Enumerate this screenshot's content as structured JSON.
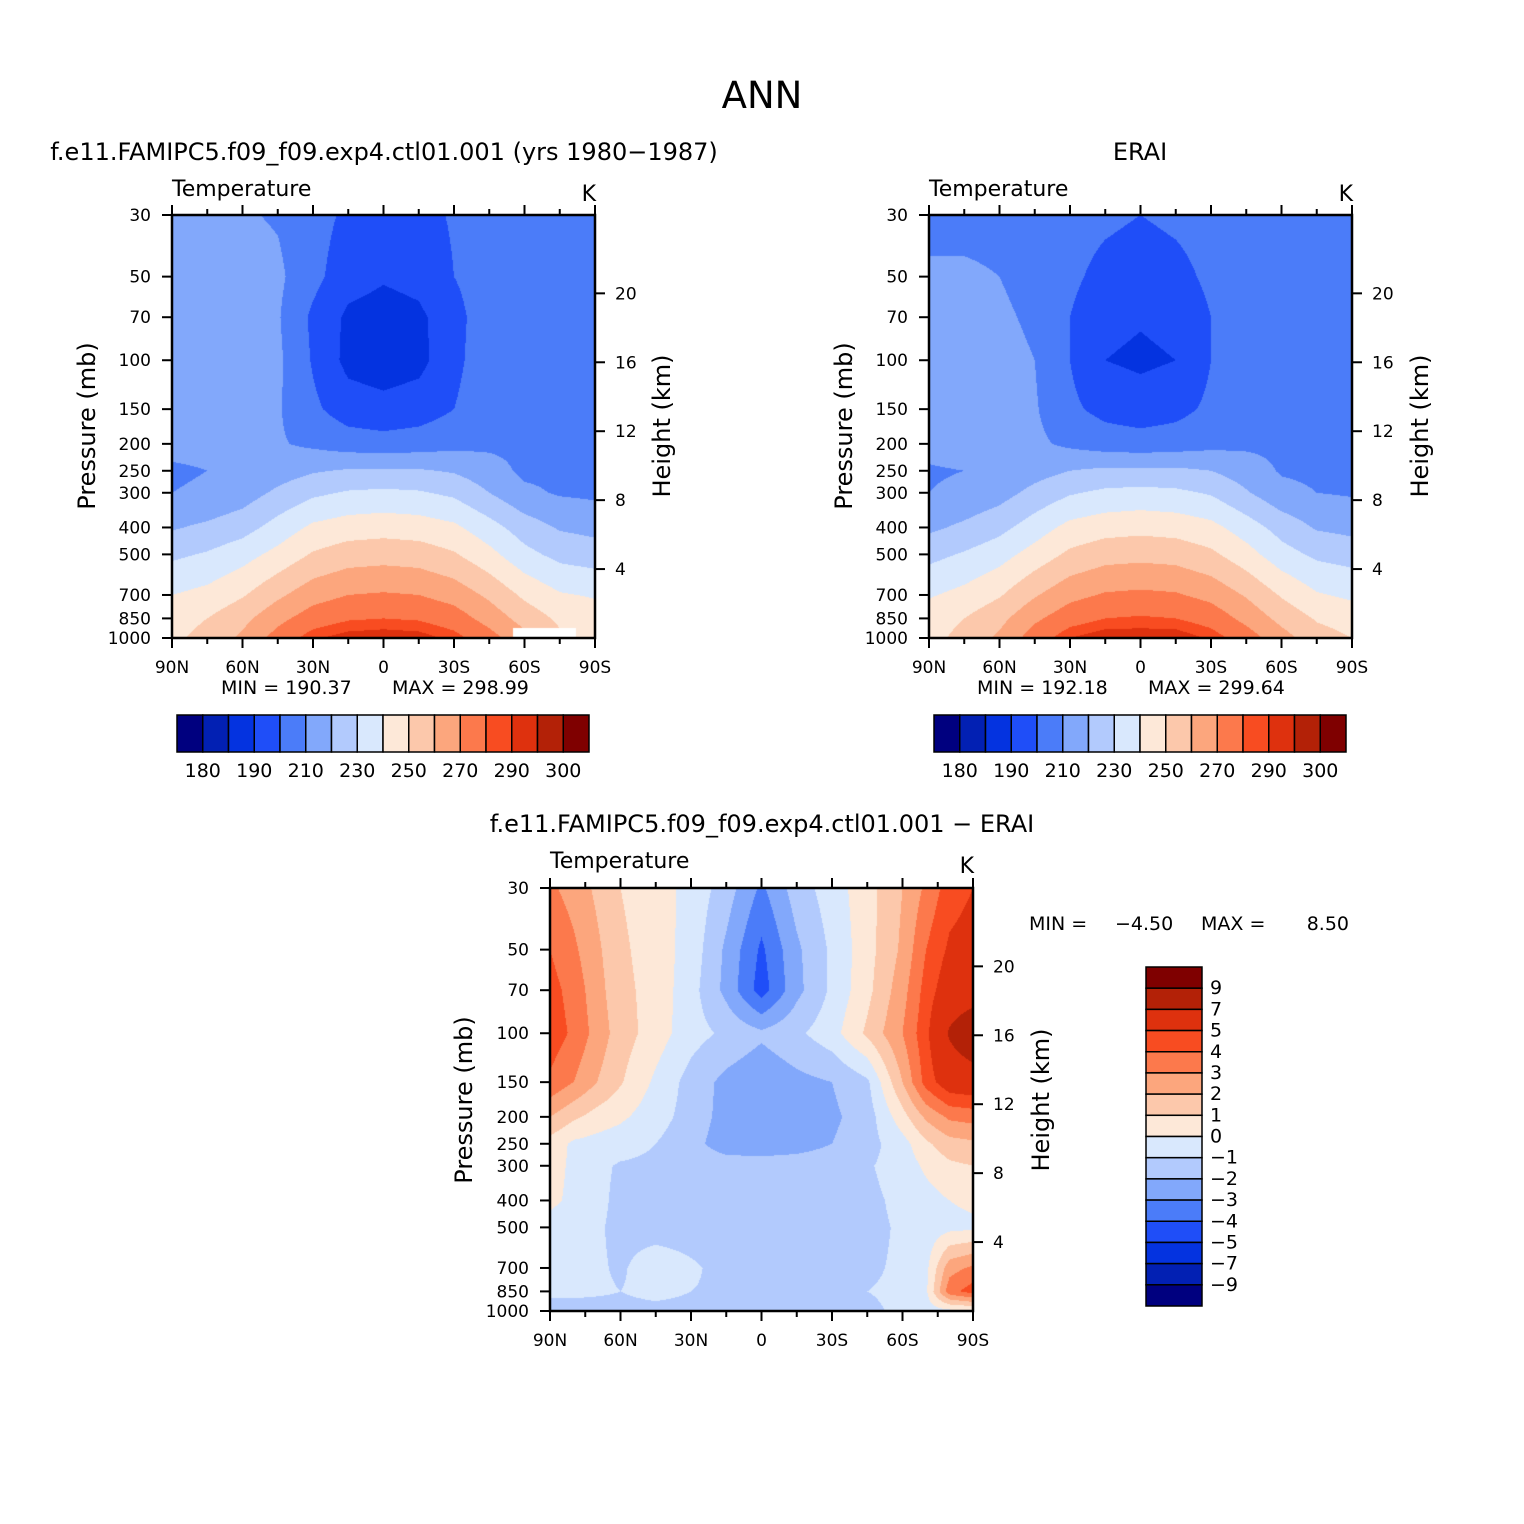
{
  "page": {
    "title": "ANN"
  },
  "colors": {
    "levels": [
      "#00007f",
      "#0220b3",
      "#0433e0",
      "#1f4ef8",
      "#4b7cf9",
      "#82a8fb",
      "#b2cafd",
      "#d9e8fd",
      "#fde8d8",
      "#fcc8ab",
      "#fca67d",
      "#fc794c",
      "#f84c21",
      "#de310e",
      "#b32107",
      "#7f0000"
    ]
  },
  "chart_data": [
    {
      "type": "heatmap",
      "panel": "model",
      "title": "f.e11.FAMIPC5.f09_f09.exp4.ctl01.001 (yrs 1980−1987)",
      "left_string": "Temperature",
      "right_string": "K",
      "ylabel": "Pressure (mb)",
      "ylabel_right": "Height (km)",
      "xlim": [
        90,
        -90
      ],
      "x_ticks": [
        90,
        60,
        30,
        0,
        -30,
        -60,
        -90
      ],
      "x_tick_labels": [
        "90N",
        "60N",
        "30N",
        "0",
        "30S",
        "60S",
        "90S"
      ],
      "ylim": [
        30,
        1000
      ],
      "y_scale": "log",
      "y_ticks": [
        30,
        50,
        70,
        100,
        150,
        200,
        250,
        300,
        400,
        500,
        700,
        850,
        1000
      ],
      "y_tick_labels": [
        "30",
        "50",
        "70",
        "100",
        "150",
        "200",
        "250",
        "300",
        "400",
        "500",
        "700",
        "850",
        "1000"
      ],
      "y_ticks_right": [
        20,
        16,
        12,
        8,
        4
      ],
      "y_tick_labels_right": [
        "20",
        "16",
        "12",
        "8",
        "4"
      ],
      "min_label": "MIN = 190.37",
      "max_label": "MAX = 298.99",
      "min": 190.37,
      "max": 298.99,
      "levels": [
        180,
        190,
        200,
        210,
        220,
        230,
        240,
        250,
        260,
        270,
        280,
        290,
        295,
        300,
        305
      ],
      "colorbar_labels": [
        "180",
        "190",
        "210",
        "230",
        "250",
        "270",
        "290",
        "300"
      ],
      "colorbar_orientation": "horizontal",
      "field": {
        "lat": [
          90,
          75,
          60,
          45,
          30,
          15,
          0,
          -15,
          -30,
          -45,
          -60,
          -75,
          -90
        ],
        "plev": [
          30,
          50,
          70,
          100,
          150,
          200,
          250,
          300,
          400,
          500,
          700,
          850,
          1000
        ],
        "values": [
          [
            222,
            222,
            221,
            219,
            214,
            208,
            205,
            207,
            211,
            215,
            217,
            217,
            217
          ],
          [
            226,
            226,
            225,
            222,
            213,
            204,
            201,
            203,
            210,
            216,
            218,
            218,
            218
          ],
          [
            226,
            226,
            225,
            221,
            208,
            198,
            196,
            198,
            206,
            217,
            218,
            218,
            218
          ],
          [
            226,
            226,
            226,
            222,
            209,
            197,
            195,
            197,
            207,
            217,
            218,
            218,
            218
          ],
          [
            225,
            225,
            224,
            221,
            212,
            205,
            203,
            205,
            210,
            217,
            218,
            218,
            218
          ],
          [
            222,
            222,
            221,
            221,
            218,
            215,
            214,
            215,
            217,
            218,
            218,
            217,
            217
          ],
          [
            219,
            220,
            221,
            225,
            229,
            231,
            231,
            231,
            229,
            224,
            218,
            218,
            218
          ],
          [
            220,
            221,
            225,
            232,
            238,
            241,
            242,
            241,
            238,
            230,
            222,
            219,
            218
          ],
          [
            229,
            232,
            236,
            244,
            252,
            255,
            256,
            255,
            252,
            244,
            235,
            229,
            227
          ],
          [
            238,
            241,
            246,
            253,
            261,
            265,
            266,
            265,
            261,
            253,
            243,
            237,
            235
          ],
          [
            250,
            253,
            259,
            268,
            276,
            280,
            281,
            280,
            276,
            268,
            258,
            251,
            249
          ],
          [
            256,
            260,
            267,
            277,
            285,
            289,
            290,
            289,
            285,
            276,
            266,
            258,
            255
          ],
          [
            258,
            263,
            272,
            284,
            294,
            298,
            299,
            298,
            293,
            284,
            273,
            262,
            258
          ]
        ],
        "missing_region": {
          "lat": [
            -55,
            -82
          ],
          "plev": [
            920,
            1000
          ]
        }
      }
    },
    {
      "type": "heatmap",
      "panel": "obs",
      "title": "ERAI",
      "left_string": "Temperature",
      "right_string": "K",
      "ylabel": "Pressure (mb)",
      "ylabel_right": "Height (km)",
      "xlim": [
        90,
        -90
      ],
      "x_ticks": [
        90,
        60,
        30,
        0,
        -30,
        -60,
        -90
      ],
      "x_tick_labels": [
        "90N",
        "60N",
        "30N",
        "0",
        "30S",
        "60S",
        "90S"
      ],
      "ylim": [
        30,
        1000
      ],
      "y_scale": "log",
      "y_ticks": [
        30,
        50,
        70,
        100,
        150,
        200,
        250,
        300,
        400,
        500,
        700,
        850,
        1000
      ],
      "y_tick_labels": [
        "30",
        "50",
        "70",
        "100",
        "150",
        "200",
        "250",
        "300",
        "400",
        "500",
        "700",
        "850",
        "1000"
      ],
      "y_ticks_right": [
        20,
        16,
        12,
        8,
        4
      ],
      "y_tick_labels_right": [
        "20",
        "16",
        "12",
        "8",
        "4"
      ],
      "min_label": "MIN = 192.18",
      "max_label": "MAX = 299.64",
      "min": 192.18,
      "max": 299.64,
      "levels": [
        180,
        190,
        200,
        210,
        220,
        230,
        240,
        250,
        260,
        270,
        280,
        290,
        295,
        300,
        305
      ],
      "colorbar_labels": [
        "180",
        "190",
        "210",
        "230",
        "250",
        "270",
        "290",
        "300"
      ],
      "colorbar_orientation": "horizontal",
      "field": {
        "lat": [
          90,
          75,
          60,
          45,
          30,
          15,
          0,
          -15,
          -30,
          -45,
          -60,
          -75,
          -90
        ],
        "plev": [
          30,
          50,
          70,
          100,
          150,
          200,
          250,
          300,
          400,
          500,
          700,
          850,
          1000
        ],
        "values": [
          [
            218,
            218,
            218,
            217,
            214,
            212,
            210,
            212,
            214,
            217,
            217,
            215,
            214
          ],
          [
            221,
            221,
            220,
            218,
            212,
            207,
            205,
            207,
            212,
            217,
            217,
            214,
            213
          ],
          [
            222,
            222,
            221,
            219,
            210,
            203,
            201,
            203,
            210,
            217,
            217,
            215,
            213
          ],
          [
            223,
            223,
            222,
            220,
            210,
            200,
            198,
            200,
            210,
            218,
            218,
            216,
            214
          ],
          [
            225,
            226,
            224,
            221,
            212,
            207,
            205,
            207,
            212,
            218,
            218,
            217,
            216
          ],
          [
            223,
            225,
            224,
            222,
            218,
            215,
            214,
            215,
            217,
            218,
            218,
            218,
            217
          ],
          [
            219,
            220,
            222,
            226,
            230,
            232,
            232,
            232,
            230,
            225,
            219,
            218,
            218
          ],
          [
            220,
            222,
            226,
            233,
            239,
            242,
            243,
            242,
            239,
            231,
            223,
            220,
            219
          ],
          [
            228,
            232,
            237,
            245,
            253,
            256,
            257,
            256,
            253,
            245,
            236,
            229,
            227
          ],
          [
            237,
            241,
            246,
            254,
            262,
            266,
            267,
            266,
            262,
            254,
            244,
            238,
            236
          ],
          [
            249,
            253,
            259,
            269,
            277,
            281,
            282,
            281,
            277,
            269,
            259,
            251,
            248
          ],
          [
            255,
            260,
            267,
            278,
            286,
            290,
            291,
            290,
            286,
            277,
            267,
            259,
            256
          ],
          [
            257,
            263,
            272,
            285,
            295,
            299,
            299,
            299,
            294,
            285,
            274,
            264,
            260
          ]
        ]
      }
    },
    {
      "type": "heatmap",
      "panel": "difference",
      "title": "f.e11.FAMIPC5.f09_f09.exp4.ctl01.001 − ERAI",
      "left_string": "Temperature",
      "right_string": "K",
      "ylabel": "Pressure (mb)",
      "ylabel_right": "Height (km)",
      "xlim": [
        90,
        -90
      ],
      "x_ticks": [
        90,
        60,
        30,
        0,
        -30,
        -60,
        -90
      ],
      "x_tick_labels": [
        "90N",
        "60N",
        "30N",
        "0",
        "30S",
        "60S",
        "90S"
      ],
      "ylim": [
        30,
        1000
      ],
      "y_scale": "log",
      "y_ticks": [
        30,
        50,
        70,
        100,
        150,
        200,
        250,
        300,
        400,
        500,
        700,
        850,
        1000
      ],
      "y_tick_labels": [
        "30",
        "50",
        "70",
        "100",
        "150",
        "200",
        "250",
        "300",
        "400",
        "500",
        "700",
        "850",
        "1000"
      ],
      "y_ticks_right": [
        20,
        16,
        12,
        8,
        4
      ],
      "y_tick_labels_right": [
        "20",
        "16",
        "12",
        "8",
        "4"
      ],
      "min_label": "MIN =",
      "min_value": "−4.50",
      "max_label": "MAX =",
      "max_value": "8.50",
      "min": -4.5,
      "max": 8.5,
      "levels": [
        -9,
        -7,
        -5,
        -4,
        -3,
        -2,
        -1,
        0,
        1,
        2,
        3,
        4,
        5,
        7,
        9
      ],
      "colorbar_labels": [
        "9",
        "7",
        "5",
        "4",
        "3",
        "2",
        "1",
        "0",
        "−1",
        "−2",
        "−3",
        "−4",
        "−5",
        "−7",
        "−9"
      ],
      "colorbar_orientation": "vertical",
      "field": {
        "lat": [
          90,
          80,
          70,
          60,
          45,
          30,
          15,
          0,
          -15,
          -30,
          -45,
          -60,
          -70,
          -80,
          -90
        ],
        "plev": [
          30,
          50,
          70,
          100,
          150,
          200,
          250,
          300,
          400,
          500,
          700,
          850,
          1000
        ],
        "values": [
          [
            3.2,
            2.6,
            1.8,
            1.0,
            0.4,
            -0.3,
            -1.5,
            -3.2,
            -1.5,
            -0.5,
            0.6,
            2.0,
            3.2,
            4.5,
            5.0
          ],
          [
            4.0,
            3.2,
            2.2,
            1.2,
            0.5,
            -0.4,
            -2.2,
            -4.2,
            -2.2,
            -0.8,
            0.6,
            2.2,
            4.0,
            5.2,
            5.5
          ],
          [
            4.4,
            3.6,
            2.4,
            1.3,
            0.6,
            -0.6,
            -2.3,
            -4.5,
            -2.3,
            -0.8,
            0.7,
            2.6,
            4.4,
            5.8,
            6.0
          ],
          [
            4.6,
            3.8,
            2.6,
            1.5,
            0.5,
            -0.6,
            -1.2,
            -1.8,
            -1.2,
            -0.4,
            1.2,
            3.0,
            4.7,
            7.2,
            8.5
          ],
          [
            3.8,
            3.0,
            2.0,
            1.1,
            -0.2,
            -1.4,
            -2.3,
            -2.8,
            -2.3,
            -2.0,
            -1.2,
            2.0,
            4.4,
            5.8,
            6.0
          ],
          [
            2.0,
            1.2,
            0.6,
            0.2,
            -0.6,
            -1.4,
            -2.4,
            -2.6,
            -2.4,
            -2.2,
            -1.5,
            0.6,
            2.2,
            3.2,
            3.4
          ],
          [
            0.6,
            -0.2,
            -0.4,
            -0.6,
            -1.0,
            -1.6,
            -2.6,
            -2.8,
            -2.6,
            -2.0,
            -1.4,
            -0.4,
            0.8,
            1.6,
            1.8
          ],
          [
            0.4,
            -0.2,
            -0.8,
            -1.1,
            -1.2,
            -1.3,
            -1.4,
            -1.4,
            -1.3,
            -1.2,
            -1.1,
            -0.6,
            0.2,
            0.8,
            1.0
          ],
          [
            0.2,
            -0.2,
            -0.8,
            -1.2,
            -1.3,
            -1.4,
            -1.4,
            -1.4,
            -1.3,
            -1.3,
            -1.2,
            -0.8,
            -0.4,
            0.0,
            0.2
          ],
          [
            -0.3,
            -0.6,
            -0.9,
            -1.2,
            -1.3,
            -1.3,
            -1.3,
            -1.3,
            -1.3,
            -1.3,
            -1.2,
            -0.9,
            -0.6,
            -0.3,
            -0.2
          ],
          [
            -0.6,
            -0.7,
            -0.9,
            -1.1,
            -0.6,
            -0.9,
            -1.2,
            -1.3,
            -1.3,
            -1.2,
            -1.1,
            -0.9,
            -0.3,
            2.6,
            3.2
          ],
          [
            -0.5,
            -0.7,
            -0.9,
            -1.0,
            -0.8,
            -1.0,
            -1.1,
            -1.1,
            -1.1,
            -1.0,
            -1.0,
            -0.9,
            -0.2,
            3.6,
            4.5
          ],
          [
            -1.9,
            -1.6,
            -1.3,
            -1.2,
            -1.2,
            -1.2,
            -1.3,
            -1.2,
            -1.3,
            -1.2,
            -1.1,
            -0.9,
            -0.5,
            -0.3,
            -0.2
          ]
        ]
      }
    }
  ]
}
